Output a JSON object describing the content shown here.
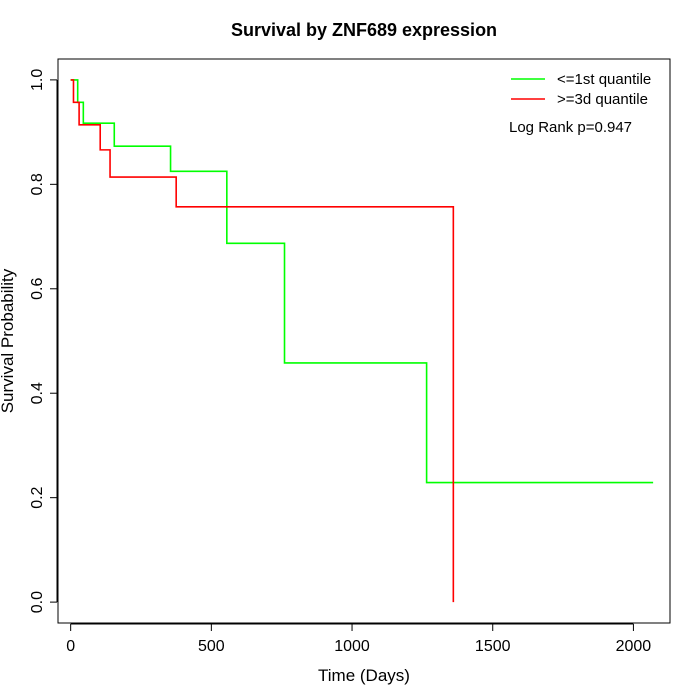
{
  "chart_data": {
    "type": "line",
    "title": "Survival by ZNF689 expression",
    "xlabel": "Time (Days)",
    "ylabel": "Survival Probability",
    "xlim": [
      -45,
      2130
    ],
    "ylim": [
      -0.04,
      1.04
    ],
    "x_ticks": [
      0,
      500,
      1000,
      1500,
      2000
    ],
    "y_ticks": [
      0.0,
      0.2,
      0.4,
      0.6,
      0.8,
      1.0
    ],
    "x_tick_labels": [
      "0",
      "500",
      "1000",
      "1500",
      "2000"
    ],
    "y_tick_labels": [
      "0.0",
      "0.2",
      "0.4",
      "0.6",
      "0.8",
      "1.0"
    ],
    "grid": false,
    "legend_position": "top-right",
    "annotation": "Log Rank p=0.947",
    "series": [
      {
        "name": "<=1st quantile",
        "color": "#00ff00",
        "x": [
          0,
          25,
          45,
          155,
          355,
          555,
          760,
          1265,
          2070
        ],
        "y": [
          1.0,
          0.957,
          0.917,
          0.873,
          0.825,
          0.687,
          0.458,
          0.229,
          0.229
        ]
      },
      {
        "name": ">=3d quantile",
        "color": "#ff0000",
        "x": [
          0,
          10,
          30,
          105,
          140,
          375,
          1360,
          1360
        ],
        "y": [
          1.0,
          0.957,
          0.914,
          0.866,
          0.814,
          0.757,
          0.757,
          0.0
        ]
      }
    ]
  }
}
